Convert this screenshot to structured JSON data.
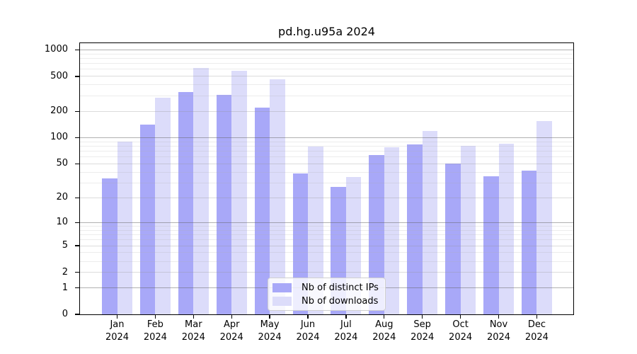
{
  "title": "pd.hg.u95a 2024",
  "legend": {
    "items": [
      {
        "label": "Nb of distinct IPs",
        "color": "#a8a8f8"
      },
      {
        "label": "Nb of downloads",
        "color": "#dcdcfa"
      }
    ]
  },
  "colors": {
    "bar_ips": "#a8a8f8",
    "bar_downloads": "#dcdcfa",
    "axis": "#000000",
    "grid_major": "#b0b0b0",
    "grid_minor": "#ececec"
  },
  "chart_data": {
    "type": "bar",
    "title": "pd.hg.u95a 2024",
    "categories": [
      "Jan",
      "Feb",
      "Mar",
      "Apr",
      "May",
      "Jun",
      "Jul",
      "Aug",
      "Sep",
      "Oct",
      "Nov",
      "Dec"
    ],
    "year": "2024",
    "series": [
      {
        "name": "Nb of distinct IPs",
        "color": "#a8a8f8",
        "values": [
          34,
          140,
          330,
          310,
          220,
          39,
          27,
          63,
          84,
          50,
          36,
          42
        ]
      },
      {
        "name": "Nb of downloads",
        "color": "#dcdcfa",
        "values": [
          90,
          285,
          620,
          580,
          465,
          79,
          35,
          78,
          119,
          80,
          86,
          156
        ]
      }
    ],
    "xlabel": "",
    "ylabel": "",
    "y_scale": "log(1+x)",
    "y_max": 1190,
    "y_ticks": [
      0,
      1,
      2,
      5,
      10,
      20,
      50,
      100,
      200,
      500,
      1000
    ],
    "grid": "on",
    "legend_position": "bottom-center-inside"
  }
}
